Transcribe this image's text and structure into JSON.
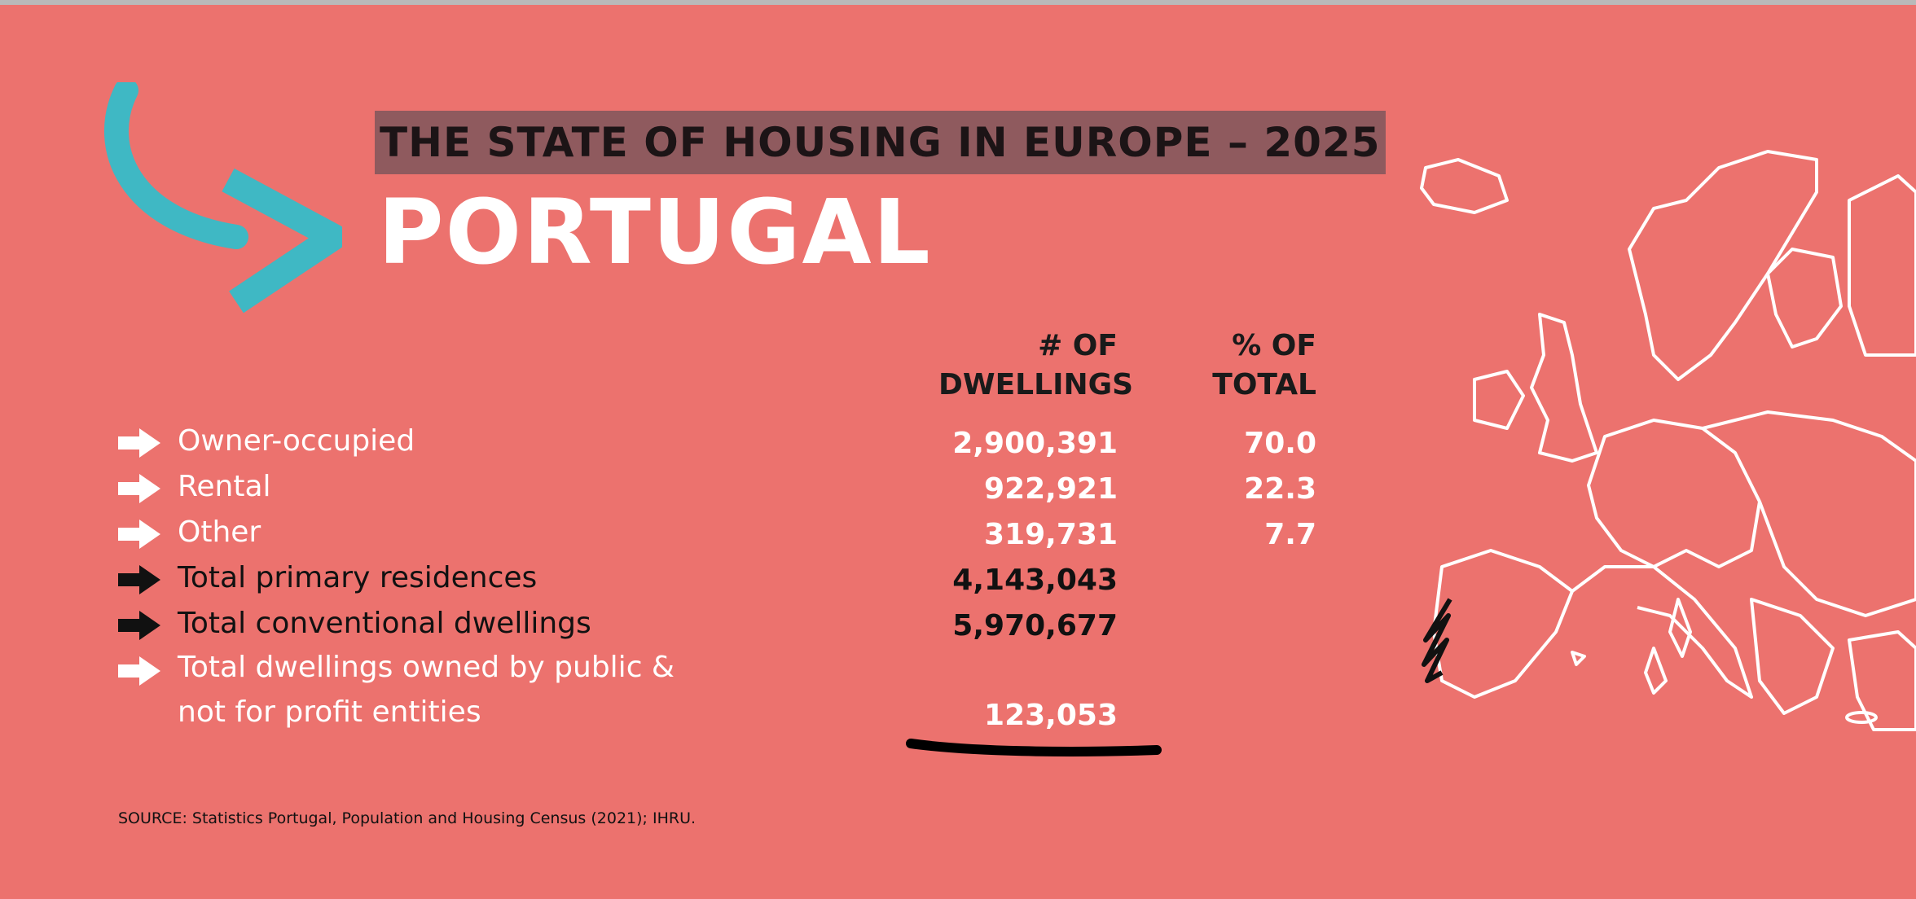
{
  "header": {
    "subtitle": "THE STATE OF HOUSING IN EUROPE – 2025",
    "title": "PORTUGAL"
  },
  "table": {
    "columns": [
      "# OF DWELLINGS",
      "% OF TOTAL"
    ],
    "rows": [
      [
        "Owner-occupied",
        "2,900,391",
        "70.0"
      ],
      [
        "Rental",
        "922,921",
        "22.3"
      ],
      [
        "Other",
        "319,731",
        "7.7"
      ],
      [
        "Total primary residences",
        "4,143,043"
      ],
      [
        "Total conventional dwellings",
        "5,970,677"
      ],
      [
        "Total dwellings owned by public & not for profit entities",
        "123,053"
      ]
    ]
  },
  "source": "SOURCE: Statistics Portugal, Population and Housing Census (2021); IHRU."
}
